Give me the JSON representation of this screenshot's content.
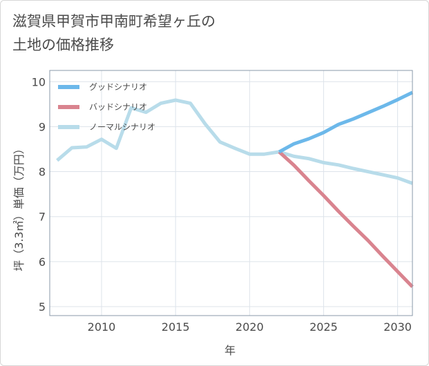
{
  "page": {
    "title_line1": "滋賀県甲賀市甲南町希望ヶ丘の",
    "title_line2": "土地の価格推移"
  },
  "chart_data": {
    "type": "line",
    "title": "滋賀県甲賀市甲南町希望ヶ丘の土地の価格推移",
    "xlabel": "年",
    "ylabel": "坪（3.3㎡）単価（万円）",
    "xlim": [
      2006.5,
      2031
    ],
    "ylim": [
      4.8,
      10.25
    ],
    "xticks": [
      2010,
      2015,
      2020,
      2025,
      2030
    ],
    "yticks": [
      5,
      6,
      7,
      8,
      9,
      10
    ],
    "grid": true,
    "legend_position": "top-left",
    "series": [
      {
        "name": "グッドシナリオ",
        "color": "#6cb8ea",
        "x": [
          2022,
          2023,
          2024,
          2025,
          2026,
          2027,
          2028,
          2029,
          2030,
          2031
        ],
        "values": [
          8.44,
          8.62,
          8.73,
          8.87,
          9.05,
          9.17,
          9.31,
          9.45,
          9.6,
          9.76
        ]
      },
      {
        "name": "バッドシナリオ",
        "color": "#d9848f",
        "x": [
          2022,
          2023,
          2024,
          2025,
          2026,
          2027,
          2028,
          2029,
          2030,
          2031
        ],
        "values": [
          8.44,
          8.14,
          7.8,
          7.47,
          7.12,
          6.79,
          6.47,
          6.12,
          5.78,
          5.44
        ]
      },
      {
        "name": "ノーマルシナリオ",
        "color": "#b8dcea",
        "x": [
          2007,
          2008,
          2009,
          2010,
          2011,
          2012,
          2013,
          2014,
          2015,
          2016,
          2017,
          2018,
          2019,
          2020,
          2021,
          2022,
          2023,
          2024,
          2025,
          2026,
          2027,
          2028,
          2029,
          2030,
          2031
        ],
        "values": [
          8.25,
          8.53,
          8.55,
          8.72,
          8.52,
          9.42,
          9.32,
          9.52,
          9.59,
          9.52,
          9.06,
          8.66,
          8.52,
          8.39,
          8.39,
          8.44,
          8.34,
          8.29,
          8.2,
          8.15,
          8.07,
          8.0,
          7.93,
          7.86,
          7.74
        ]
      }
    ]
  }
}
